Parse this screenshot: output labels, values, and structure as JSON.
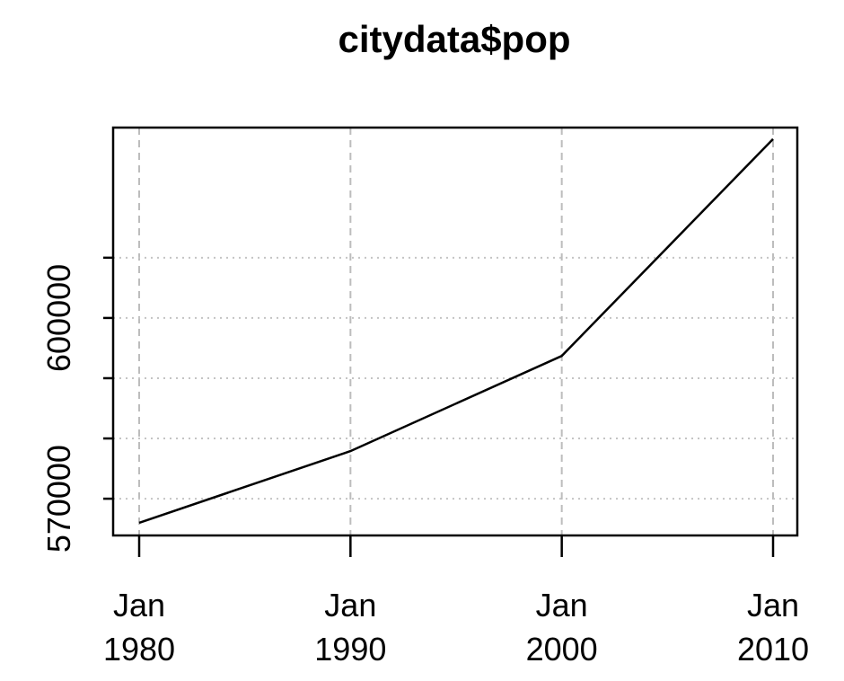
{
  "chart_data": {
    "type": "line",
    "title": "citydata$pop",
    "xlabel": "",
    "ylabel": "",
    "x": [
      "Jan 1980",
      "Jan 1990",
      "Jan 2000",
      "Jan 2010"
    ],
    "x_tick_labels": [
      {
        "line1": "Jan",
        "line2": "1980"
      },
      {
        "line1": "Jan",
        "line2": "1990"
      },
      {
        "line1": "Jan",
        "line2": "2000"
      },
      {
        "line1": "Jan",
        "line2": "2010"
      }
    ],
    "series": [
      {
        "values": [
          566000,
          577900,
          593700,
          629700
        ]
      }
    ],
    "y_ticks": [
      570000,
      580000,
      590000,
      600000,
      610000
    ],
    "y_tick_labels": [
      "570000",
      "600000"
    ],
    "ylim": [
      563900,
      631600
    ],
    "grid": true,
    "legend": "none"
  }
}
